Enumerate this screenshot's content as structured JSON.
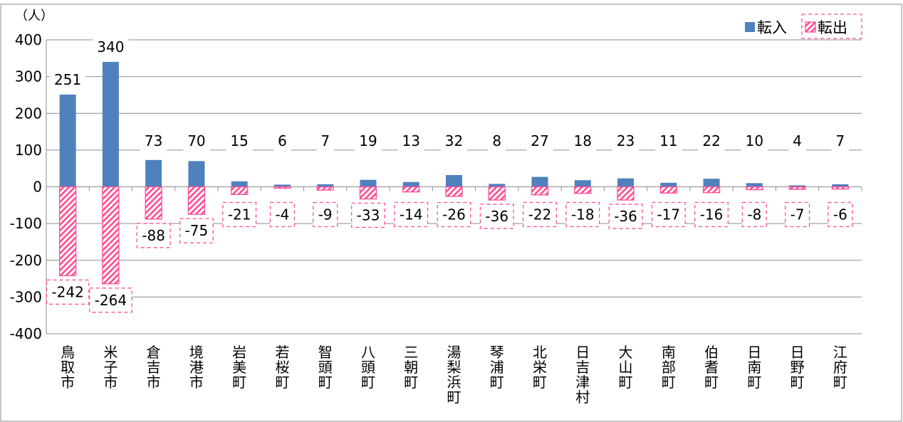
{
  "chart_data": {
    "type": "bar",
    "unit_label": "（人）",
    "categories": [
      "鳥取市",
      "米子市",
      "倉吉市",
      "境港市",
      "岩美町",
      "若桜町",
      "智頭町",
      "八頭町",
      "三朝町",
      "湯梨浜町",
      "琴浦町",
      "北栄町",
      "日吉津村",
      "大山町",
      "南部町",
      "伯耆町",
      "日南町",
      "日野町",
      "江府町"
    ],
    "series": [
      {
        "name": "転入",
        "color": "#4f81bd",
        "values": [
          251,
          340,
          73,
          70,
          15,
          6,
          7,
          19,
          13,
          32,
          8,
          27,
          18,
          23,
          11,
          22,
          10,
          4,
          7
        ]
      },
      {
        "name": "転出",
        "color": "#ff4d94",
        "pattern": "diagonal-hatch",
        "values": [
          -242,
          -264,
          -88,
          -75,
          -21,
          -4,
          -9,
          -33,
          -14,
          -26,
          -36,
          -22,
          -18,
          -36,
          -17,
          -16,
          -8,
          -7,
          -6
        ]
      }
    ],
    "ylim": [
      -400,
      400
    ],
    "yticks": [
      400,
      300,
      200,
      100,
      0,
      -100,
      -200,
      -300,
      -400
    ],
    "grid": true,
    "legend_position": "top-right"
  }
}
